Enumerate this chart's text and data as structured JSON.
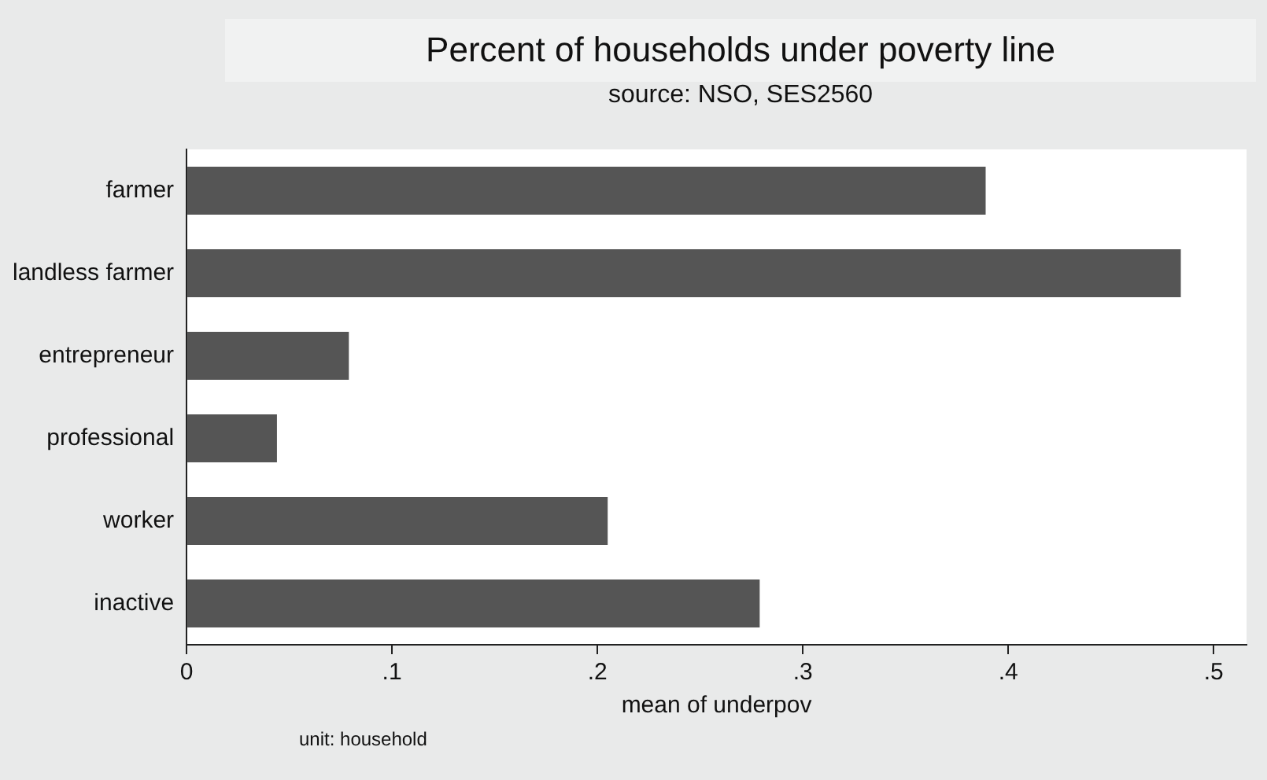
{
  "chart_data": {
    "type": "bar",
    "orientation": "horizontal",
    "title": "Percent of households under poverty line",
    "subtitle": "source: NSO, SES2560",
    "xlabel": "mean of underpov",
    "categories": [
      "farmer",
      "landless farmer",
      "entrepreneur",
      "professional",
      "worker",
      "inactive"
    ],
    "values": [
      0.389,
      0.484,
      0.079,
      0.044,
      0.205,
      0.279
    ],
    "color": "#555555",
    "xlim": [
      0,
      0.516
    ],
    "xticks": [
      0,
      {
        "value": 0.1,
        "label": ".1"
      },
      {
        "value": 0.2,
        "label": ".2"
      },
      {
        "value": 0.3,
        "label": ".3"
      },
      {
        "value": 0.4,
        "label": ".4"
      },
      {
        "value": 0.5,
        "label": ".5"
      }
    ],
    "grid": false,
    "legend": false,
    "annotations": [
      "unit: household"
    ]
  }
}
